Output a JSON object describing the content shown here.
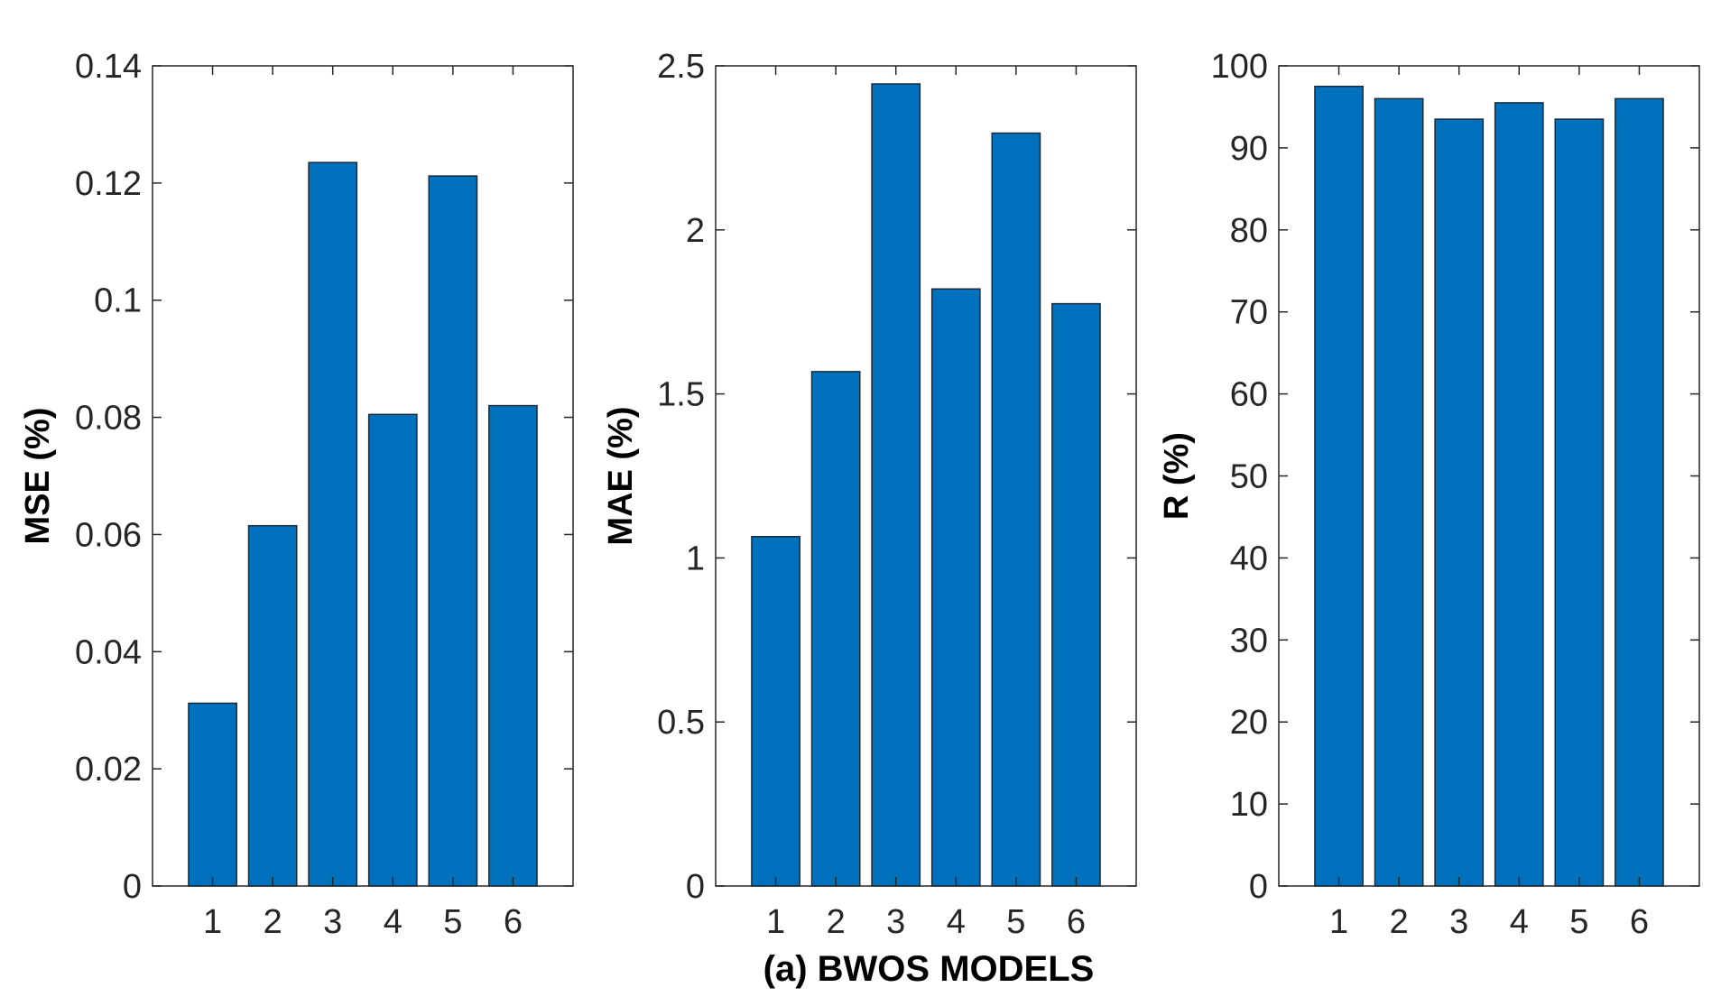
{
  "colors": {
    "bar_fill": "#0072BD",
    "bar_edge": "#1a2a3a",
    "axis": "#262626",
    "background": "#ffffff"
  },
  "figure": {
    "caption": "(a) BWOS MODELS"
  },
  "chart_data": [
    {
      "type": "bar",
      "categories": [
        "1",
        "2",
        "3",
        "4",
        "5",
        "6"
      ],
      "values": [
        0.0312,
        0.0615,
        0.1235,
        0.0805,
        0.1212,
        0.082
      ],
      "xlabel": "",
      "ylabel": "MSE (%)",
      "ylim": [
        0,
        0.14
      ],
      "yticks": [
        0,
        0.02,
        0.04,
        0.06,
        0.08,
        0.1,
        0.12,
        0.14
      ],
      "ytick_labels": [
        "0",
        "0.02",
        "0.04",
        "0.06",
        "0.08",
        "0.1",
        "0.12",
        "0.14"
      ],
      "grid": false
    },
    {
      "type": "bar",
      "categories": [
        "1",
        "2",
        "3",
        "4",
        "5",
        "6"
      ],
      "values": [
        1.065,
        1.568,
        2.445,
        1.82,
        2.295,
        1.775
      ],
      "xlabel": "",
      "ylabel": "MAE (%)",
      "ylim": [
        0,
        2.5
      ],
      "yticks": [
        0,
        0.5,
        1,
        1.5,
        2,
        2.5
      ],
      "ytick_labels": [
        "0",
        "0.5",
        "1",
        "1.5",
        "2",
        "2.5"
      ],
      "grid": false
    },
    {
      "type": "bar",
      "categories": [
        "1",
        "2",
        "3",
        "4",
        "5",
        "6"
      ],
      "values": [
        97.5,
        96.0,
        93.5,
        95.5,
        93.5,
        96.0
      ],
      "xlabel": "",
      "ylabel": "R (%)",
      "ylim": [
        0,
        100
      ],
      "yticks": [
        0,
        10,
        20,
        30,
        40,
        50,
        60,
        70,
        80,
        90,
        100
      ],
      "ytick_labels": [
        "0",
        "10",
        "20",
        "30",
        "40",
        "50",
        "60",
        "70",
        "80",
        "90",
        "100"
      ],
      "grid": false
    }
  ]
}
